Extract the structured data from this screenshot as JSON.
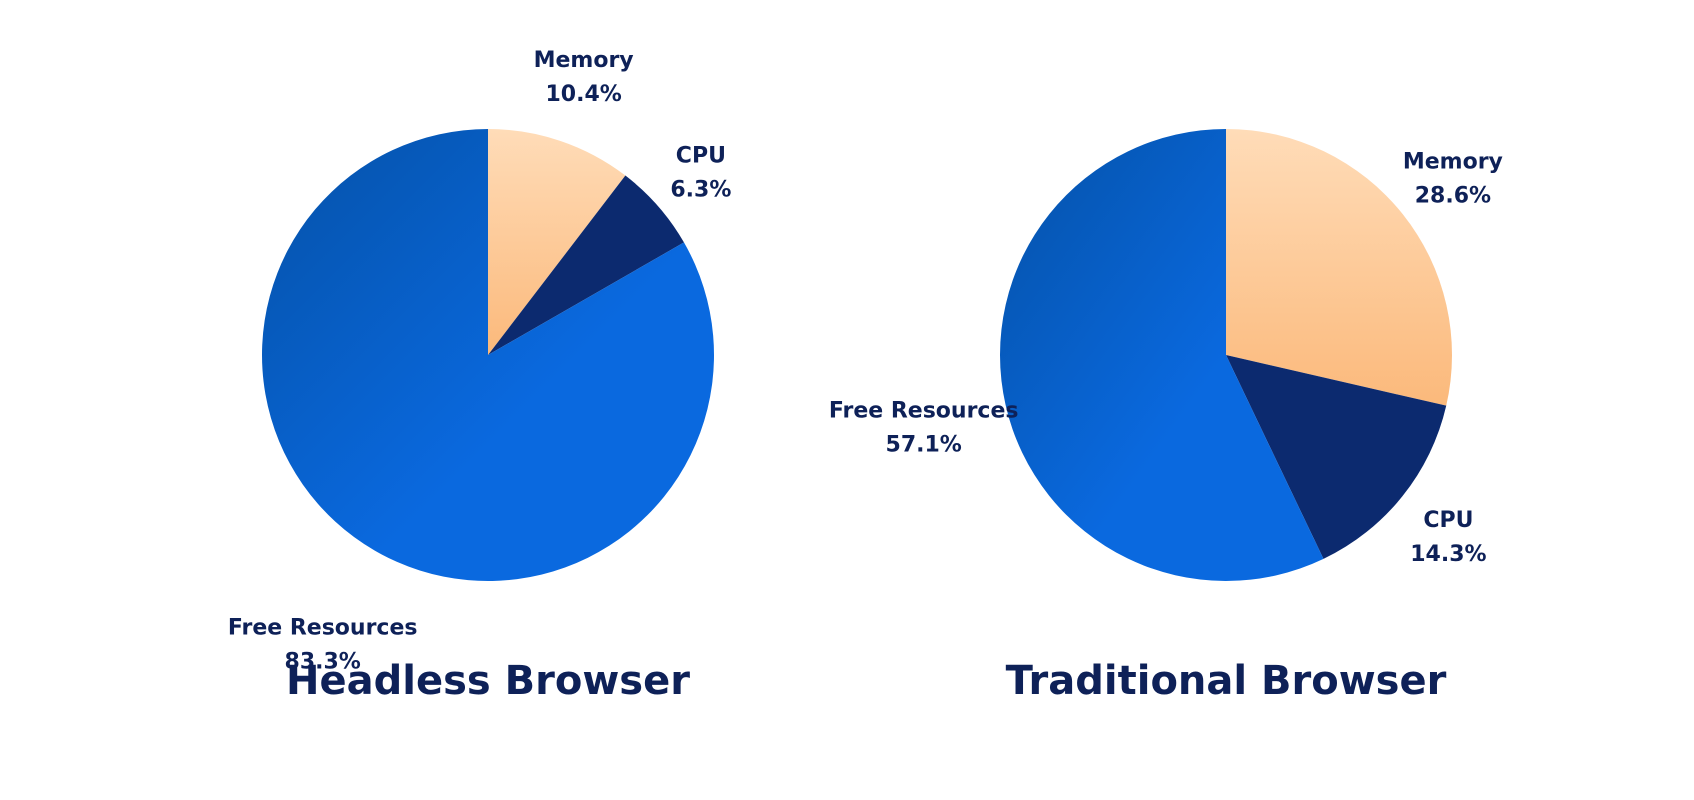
{
  "colors": {
    "text": "#0e2158",
    "memory_light": "#ffdcb8",
    "memory_dark": "#fbb97b",
    "cpu": "#0c2a6f",
    "free_light": "#0a69df",
    "free_dark": "#0451a7"
  },
  "chart_data": [
    {
      "type": "pie",
      "title": "Headless Browser",
      "slices": [
        {
          "label": "Memory",
          "value": 10.4,
          "display": "10.4%"
        },
        {
          "label": "CPU",
          "value": 6.3,
          "display": "6.3%"
        },
        {
          "label": "Free Resources",
          "value": 83.3,
          "display": "83.3%"
        }
      ]
    },
    {
      "type": "pie",
      "title": "Traditional Browser",
      "slices": [
        {
          "label": "Memory",
          "value": 28.6,
          "display": "28.6%"
        },
        {
          "label": "CPU",
          "value": 14.3,
          "display": "14.3%"
        },
        {
          "label": "Free Resources",
          "value": 57.1,
          "display": "57.1%"
        }
      ]
    }
  ]
}
